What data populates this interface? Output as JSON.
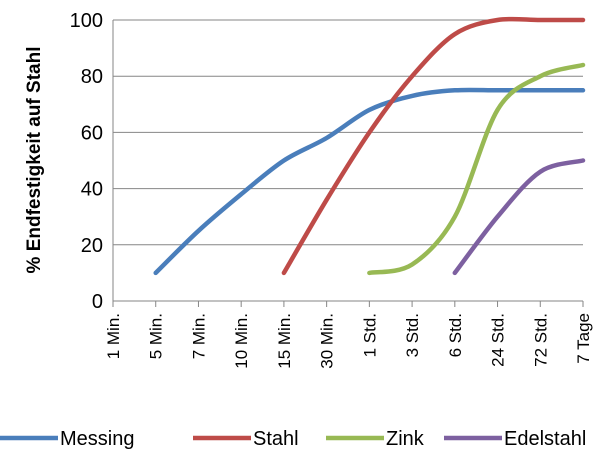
{
  "chart_data": {
    "type": "line",
    "title": "",
    "xlabel": "",
    "ylabel": "% Endfestigkeit auf Stahl",
    "categories": [
      "1 Min.",
      "5 Min.",
      "7 Min.",
      "10 Min.",
      "15 Min.",
      "30 Min.",
      "1 Std.",
      "3 Std.",
      "6 Std.",
      "24 Std.",
      "72 Std.",
      "7 Tage"
    ],
    "ylim": [
      0,
      100
    ],
    "yticks": [
      0,
      20,
      40,
      60,
      80,
      100
    ],
    "grid": "horizontal",
    "legend_position": "bottom",
    "series": [
      {
        "name": "Messing",
        "color": "#4a7ebb",
        "values": [
          null,
          10,
          25,
          38,
          50,
          58,
          68,
          73,
          75,
          75,
          75,
          75
        ]
      },
      {
        "name": "Stahl",
        "color": "#be4b48",
        "values": [
          null,
          null,
          null,
          null,
          10,
          36,
          60,
          80,
          95,
          100,
          100,
          100
        ]
      },
      {
        "name": "Zink",
        "color": "#98b954",
        "values": [
          null,
          null,
          null,
          null,
          null,
          null,
          10,
          13,
          30,
          68,
          80,
          84
        ]
      },
      {
        "name": "Edelstahl",
        "color": "#7d60a0",
        "values": [
          null,
          null,
          null,
          null,
          null,
          null,
          null,
          null,
          10,
          30,
          46,
          50
        ]
      }
    ]
  }
}
